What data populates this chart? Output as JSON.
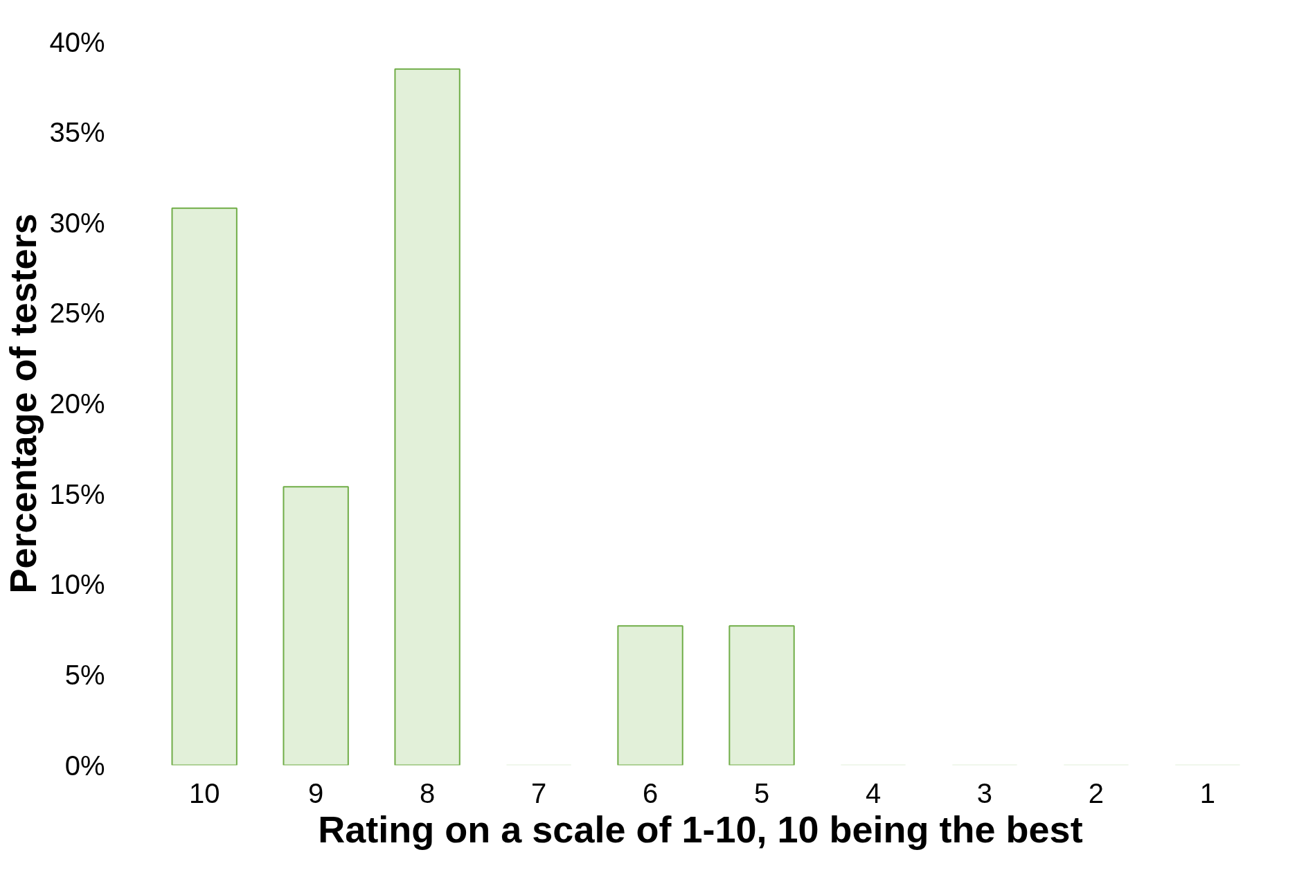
{
  "chart_data": {
    "type": "bar",
    "xlabel": "Rating on a scale of 1-10, 10 being the best",
    "ylabel": "Percentage of testers",
    "categories": [
      "10",
      "9",
      "8",
      "7",
      "6",
      "5",
      "4",
      "3",
      "2",
      "1"
    ],
    "values": [
      30.8,
      15.4,
      38.5,
      0,
      7.7,
      7.7,
      0,
      0,
      0,
      0
    ],
    "color": "#e2f0d9",
    "ylim": [
      0,
      40
    ],
    "yticks": [
      {
        "value": 0,
        "label": "0%"
      },
      {
        "value": 5,
        "label": "5%"
      },
      {
        "value": 10,
        "label": "10%"
      },
      {
        "value": 15,
        "label": "15%"
      },
      {
        "value": 20,
        "label": "20%"
      },
      {
        "value": 25,
        "label": "25%"
      },
      {
        "value": 30,
        "label": "30%"
      },
      {
        "value": 35,
        "label": "35%"
      },
      {
        "value": 40,
        "label": "40%"
      }
    ],
    "grid": false
  }
}
